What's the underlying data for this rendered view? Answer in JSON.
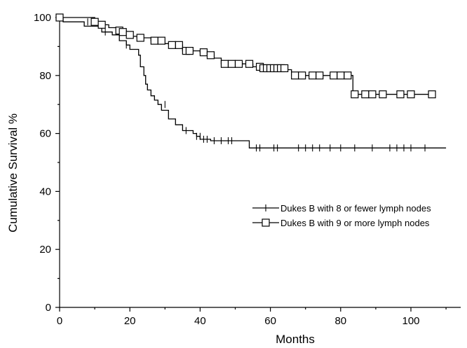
{
  "chart_data": {
    "type": "line",
    "title": "",
    "xlabel": "Months",
    "ylabel": "Cumulative Survival %",
    "xlim": [
      0,
      112
    ],
    "ylim": [
      0,
      100
    ],
    "xticks": [
      0,
      20,
      40,
      60,
      80,
      100
    ],
    "yticks": [
      0,
      20,
      40,
      60,
      80,
      100
    ],
    "grid": false,
    "legend_position": "center-right",
    "series": [
      {
        "name": "Dukes B with 8 or fewer lymph nodes",
        "marker": "plus",
        "color": "#000000",
        "steps": [
          [
            0,
            100
          ],
          [
            1,
            98.5
          ],
          [
            4,
            98.5
          ],
          [
            7,
            97
          ],
          [
            10,
            97
          ],
          [
            12,
            95
          ],
          [
            15,
            94
          ],
          [
            17,
            92
          ],
          [
            19,
            90.5
          ],
          [
            20,
            89
          ],
          [
            22,
            89
          ],
          [
            22.5,
            87
          ],
          [
            23,
            83
          ],
          [
            24,
            80
          ],
          [
            24.5,
            77
          ],
          [
            25,
            75
          ],
          [
            26,
            73
          ],
          [
            27,
            71.5
          ],
          [
            28,
            70
          ],
          [
            29,
            68
          ],
          [
            31,
            65
          ],
          [
            33,
            63
          ],
          [
            35,
            61
          ],
          [
            38,
            60
          ],
          [
            39,
            59
          ],
          [
            40,
            58
          ],
          [
            43,
            57.5
          ],
          [
            48,
            57.5
          ],
          [
            54,
            55
          ],
          [
            110,
            55
          ]
        ],
        "censored": [
          [
            8,
            98.5
          ],
          [
            13,
            95
          ],
          [
            19,
            90.5
          ],
          [
            30,
            70
          ],
          [
            36,
            61
          ],
          [
            39,
            59
          ],
          [
            40,
            59
          ],
          [
            41,
            58
          ],
          [
            42,
            58
          ],
          [
            44,
            57.5
          ],
          [
            46,
            57.5
          ],
          [
            48,
            57.5
          ],
          [
            49,
            57.5
          ],
          [
            56,
            55
          ],
          [
            57,
            55
          ],
          [
            61,
            55
          ],
          [
            62,
            55
          ],
          [
            68,
            55
          ],
          [
            70,
            55
          ],
          [
            72,
            55
          ],
          [
            74,
            55
          ],
          [
            77,
            55
          ],
          [
            80,
            55
          ],
          [
            84,
            55
          ],
          [
            89,
            55
          ],
          [
            94,
            55
          ],
          [
            96,
            55
          ],
          [
            98,
            55
          ],
          [
            100,
            55
          ],
          [
            104,
            55
          ]
        ]
      },
      {
        "name": "Dukes B with 9 or more lymph nodes",
        "marker": "square",
        "color": "#000000",
        "steps": [
          [
            0,
            100
          ],
          [
            2,
            100
          ],
          [
            9,
            100
          ],
          [
            10,
            98.5
          ],
          [
            12,
            97.5
          ],
          [
            14,
            96.5
          ],
          [
            17,
            95.5
          ],
          [
            19,
            94.5
          ],
          [
            20,
            93.5
          ],
          [
            22,
            93
          ],
          [
            26,
            92
          ],
          [
            29,
            91
          ],
          [
            32,
            90.5
          ],
          [
            35,
            88.5
          ],
          [
            40,
            88
          ],
          [
            43,
            87
          ],
          [
            44,
            86
          ],
          [
            46,
            84
          ],
          [
            53,
            84
          ],
          [
            55,
            83
          ],
          [
            64,
            82
          ],
          [
            66,
            80
          ],
          [
            83,
            80
          ],
          [
            83.5,
            73.5
          ],
          [
            107,
            73.5
          ]
        ],
        "censored": [
          [
            0,
            100
          ],
          [
            10,
            98.5
          ],
          [
            12,
            97.5
          ],
          [
            17,
            95.5
          ],
          [
            18,
            95
          ],
          [
            20,
            94
          ],
          [
            23,
            93
          ],
          [
            27,
            92
          ],
          [
            29,
            92
          ],
          [
            32,
            90.5
          ],
          [
            34,
            90.5
          ],
          [
            36,
            88.5
          ],
          [
            37,
            88.5
          ],
          [
            41,
            88
          ],
          [
            43,
            87
          ],
          [
            47,
            84
          ],
          [
            49,
            84
          ],
          [
            51,
            84
          ],
          [
            54,
            84
          ],
          [
            57,
            83
          ],
          [
            58,
            82.5
          ],
          [
            59,
            82.5
          ],
          [
            60,
            82.5
          ],
          [
            61,
            82.5
          ],
          [
            62,
            82.5
          ],
          [
            63,
            82.5
          ],
          [
            64,
            82.5
          ],
          [
            67,
            80
          ],
          [
            69,
            80
          ],
          [
            72,
            80
          ],
          [
            74,
            80
          ],
          [
            78,
            80
          ],
          [
            80,
            80
          ],
          [
            82,
            80
          ],
          [
            84,
            73.5
          ],
          [
            87,
            73.5
          ],
          [
            89,
            73.5
          ],
          [
            92,
            73.5
          ],
          [
            97,
            73.5
          ],
          [
            100,
            73.5
          ],
          [
            106,
            73.5
          ]
        ]
      }
    ]
  }
}
